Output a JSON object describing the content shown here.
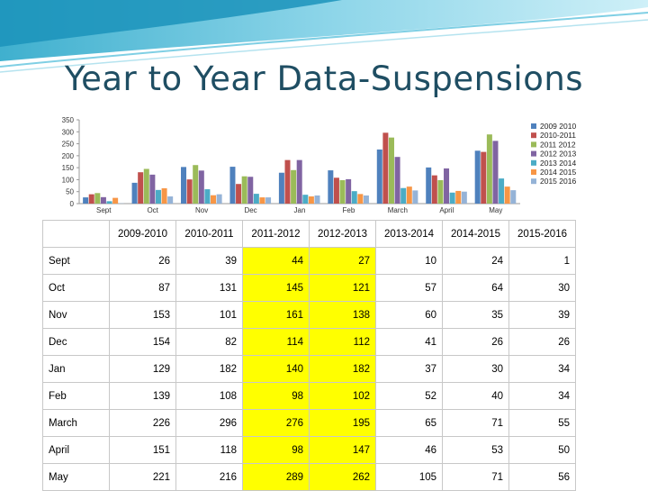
{
  "slide": {
    "title": "Year to Year Data-Suspensions"
  },
  "chart_data": {
    "type": "bar",
    "categories": [
      "Sept",
      "Oct",
      "Nov",
      "Dec",
      "Jan",
      "Feb",
      "March",
      "April",
      "May"
    ],
    "ylim": [
      0,
      350
    ],
    "yticks": [
      0,
      50,
      100,
      150,
      200,
      250,
      300,
      350
    ],
    "legend_position": "right",
    "series": [
      {
        "name": "2009 2010",
        "color": "#4f81bd",
        "values": [
          26,
          87,
          153,
          154,
          129,
          139,
          226,
          151,
          221
        ]
      },
      {
        "name": "2010-2011",
        "color": "#c0504d",
        "values": [
          39,
          131,
          101,
          82,
          182,
          108,
          296,
          118,
          216
        ]
      },
      {
        "name": "2011 2012",
        "color": "#9bbb59",
        "values": [
          44,
          145,
          161,
          114,
          140,
          98,
          276,
          98,
          289
        ]
      },
      {
        "name": "2012 2013",
        "color": "#8064a2",
        "values": [
          27,
          121,
          138,
          112,
          182,
          102,
          195,
          147,
          262
        ]
      },
      {
        "name": "2013 2014",
        "color": "#4bacc6",
        "values": [
          10,
          57,
          60,
          41,
          37,
          52,
          65,
          46,
          105
        ]
      },
      {
        "name": "2014 2015",
        "color": "#f79646",
        "values": [
          24,
          64,
          35,
          26,
          30,
          40,
          71,
          53,
          71
        ]
      },
      {
        "name": "2015 2016",
        "color": "#95b3d7",
        "values": [
          1,
          30,
          39,
          26,
          34,
          34,
          55,
          50,
          56
        ]
      }
    ]
  },
  "table": {
    "headers": [
      "2009-2010",
      "2010-2011",
      "2011-2012",
      "2012-2013",
      "2013-2014",
      "2014-2015",
      "2015-2016"
    ],
    "rows": [
      {
        "label": "Sept",
        "values": [
          "26",
          "39",
          "44",
          "27",
          "10",
          "24",
          "1"
        ]
      },
      {
        "label": "Oct",
        "values": [
          "87",
          "131",
          "145",
          "121",
          "57",
          "64",
          "30"
        ]
      },
      {
        "label": "Nov",
        "values": [
          "153",
          "101",
          "161",
          "138",
          "60",
          "35",
          "39"
        ]
      },
      {
        "label": "Dec",
        "values": [
          "154",
          "82",
          "114",
          "112",
          "41",
          "26",
          "26"
        ]
      },
      {
        "label": "Jan",
        "values": [
          "129",
          "182",
          "140",
          "182",
          "37",
          "30",
          "34"
        ]
      },
      {
        "label": "Feb",
        "values": [
          "139",
          "108",
          "98",
          "102",
          "52",
          "40",
          "34"
        ]
      },
      {
        "label": "March",
        "values": [
          "226",
          "296",
          "276",
          "195",
          "65",
          "71",
          "55"
        ]
      },
      {
        "label": "April",
        "values": [
          "151",
          "118",
          "98",
          "147",
          "46",
          "53",
          "50"
        ]
      },
      {
        "label": "May",
        "values": [
          "221",
          "216",
          "289",
          "262",
          "105",
          "71",
          "56"
        ]
      }
    ],
    "highlight_columns": [
      2,
      3
    ],
    "highlight_color": "#ffff00"
  }
}
